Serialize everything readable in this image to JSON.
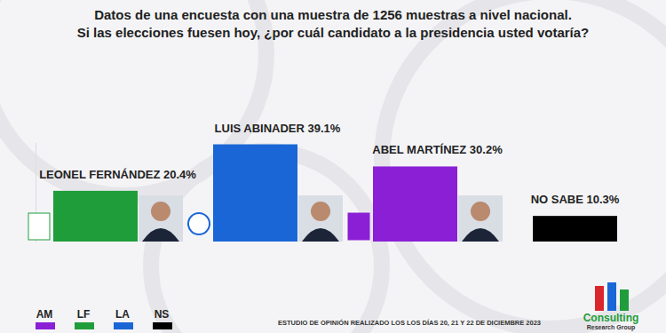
{
  "chart_data": {
    "type": "bar",
    "title": "Datos de una encuesta con una muestra de 1256 muestras a nivel nacional.",
    "subtitle": "Si las elecciones fuesen hoy, ¿por cuál candidato a la presidencia usted votaría?",
    "categories": [
      "LEONEL FERNÁNDEZ",
      "LUIS ABINADER",
      "ABEL MARTÍNEZ",
      "NO SABE"
    ],
    "series": [
      {
        "name": "AM",
        "color": "#8a1fd6",
        "values": [
          null,
          null,
          30.2,
          null
        ],
        "value_labels": [
          null,
          null,
          "30.2%",
          null
        ]
      },
      {
        "name": "LF",
        "color": "#1f9d3a",
        "values": [
          20.4,
          null,
          null,
          null
        ],
        "value_labels": [
          "20.4%",
          null,
          null,
          null
        ]
      },
      {
        "name": "LA",
        "color": "#1a66d6",
        "values": [
          null,
          39.1,
          null,
          null
        ],
        "value_labels": [
          null,
          "39.1%",
          null,
          null
        ]
      },
      {
        "name": "NS",
        "color": "#000000",
        "values": [
          null,
          null,
          null,
          10.3
        ],
        "value_labels": [
          null,
          null,
          null,
          "10.3%"
        ]
      }
    ],
    "ylim": [
      0,
      40
    ],
    "tick_labels": false,
    "grid": false,
    "data_labels": true,
    "legend": "bottom-left",
    "annotations": [
      "ESTUDIO DE OPINIÓN REALIZADO LOS LOS DÍAS 20, 21 Y 22 DE DICIEMBRE 2023",
      "Consulting",
      "Research Group"
    ]
  }
}
